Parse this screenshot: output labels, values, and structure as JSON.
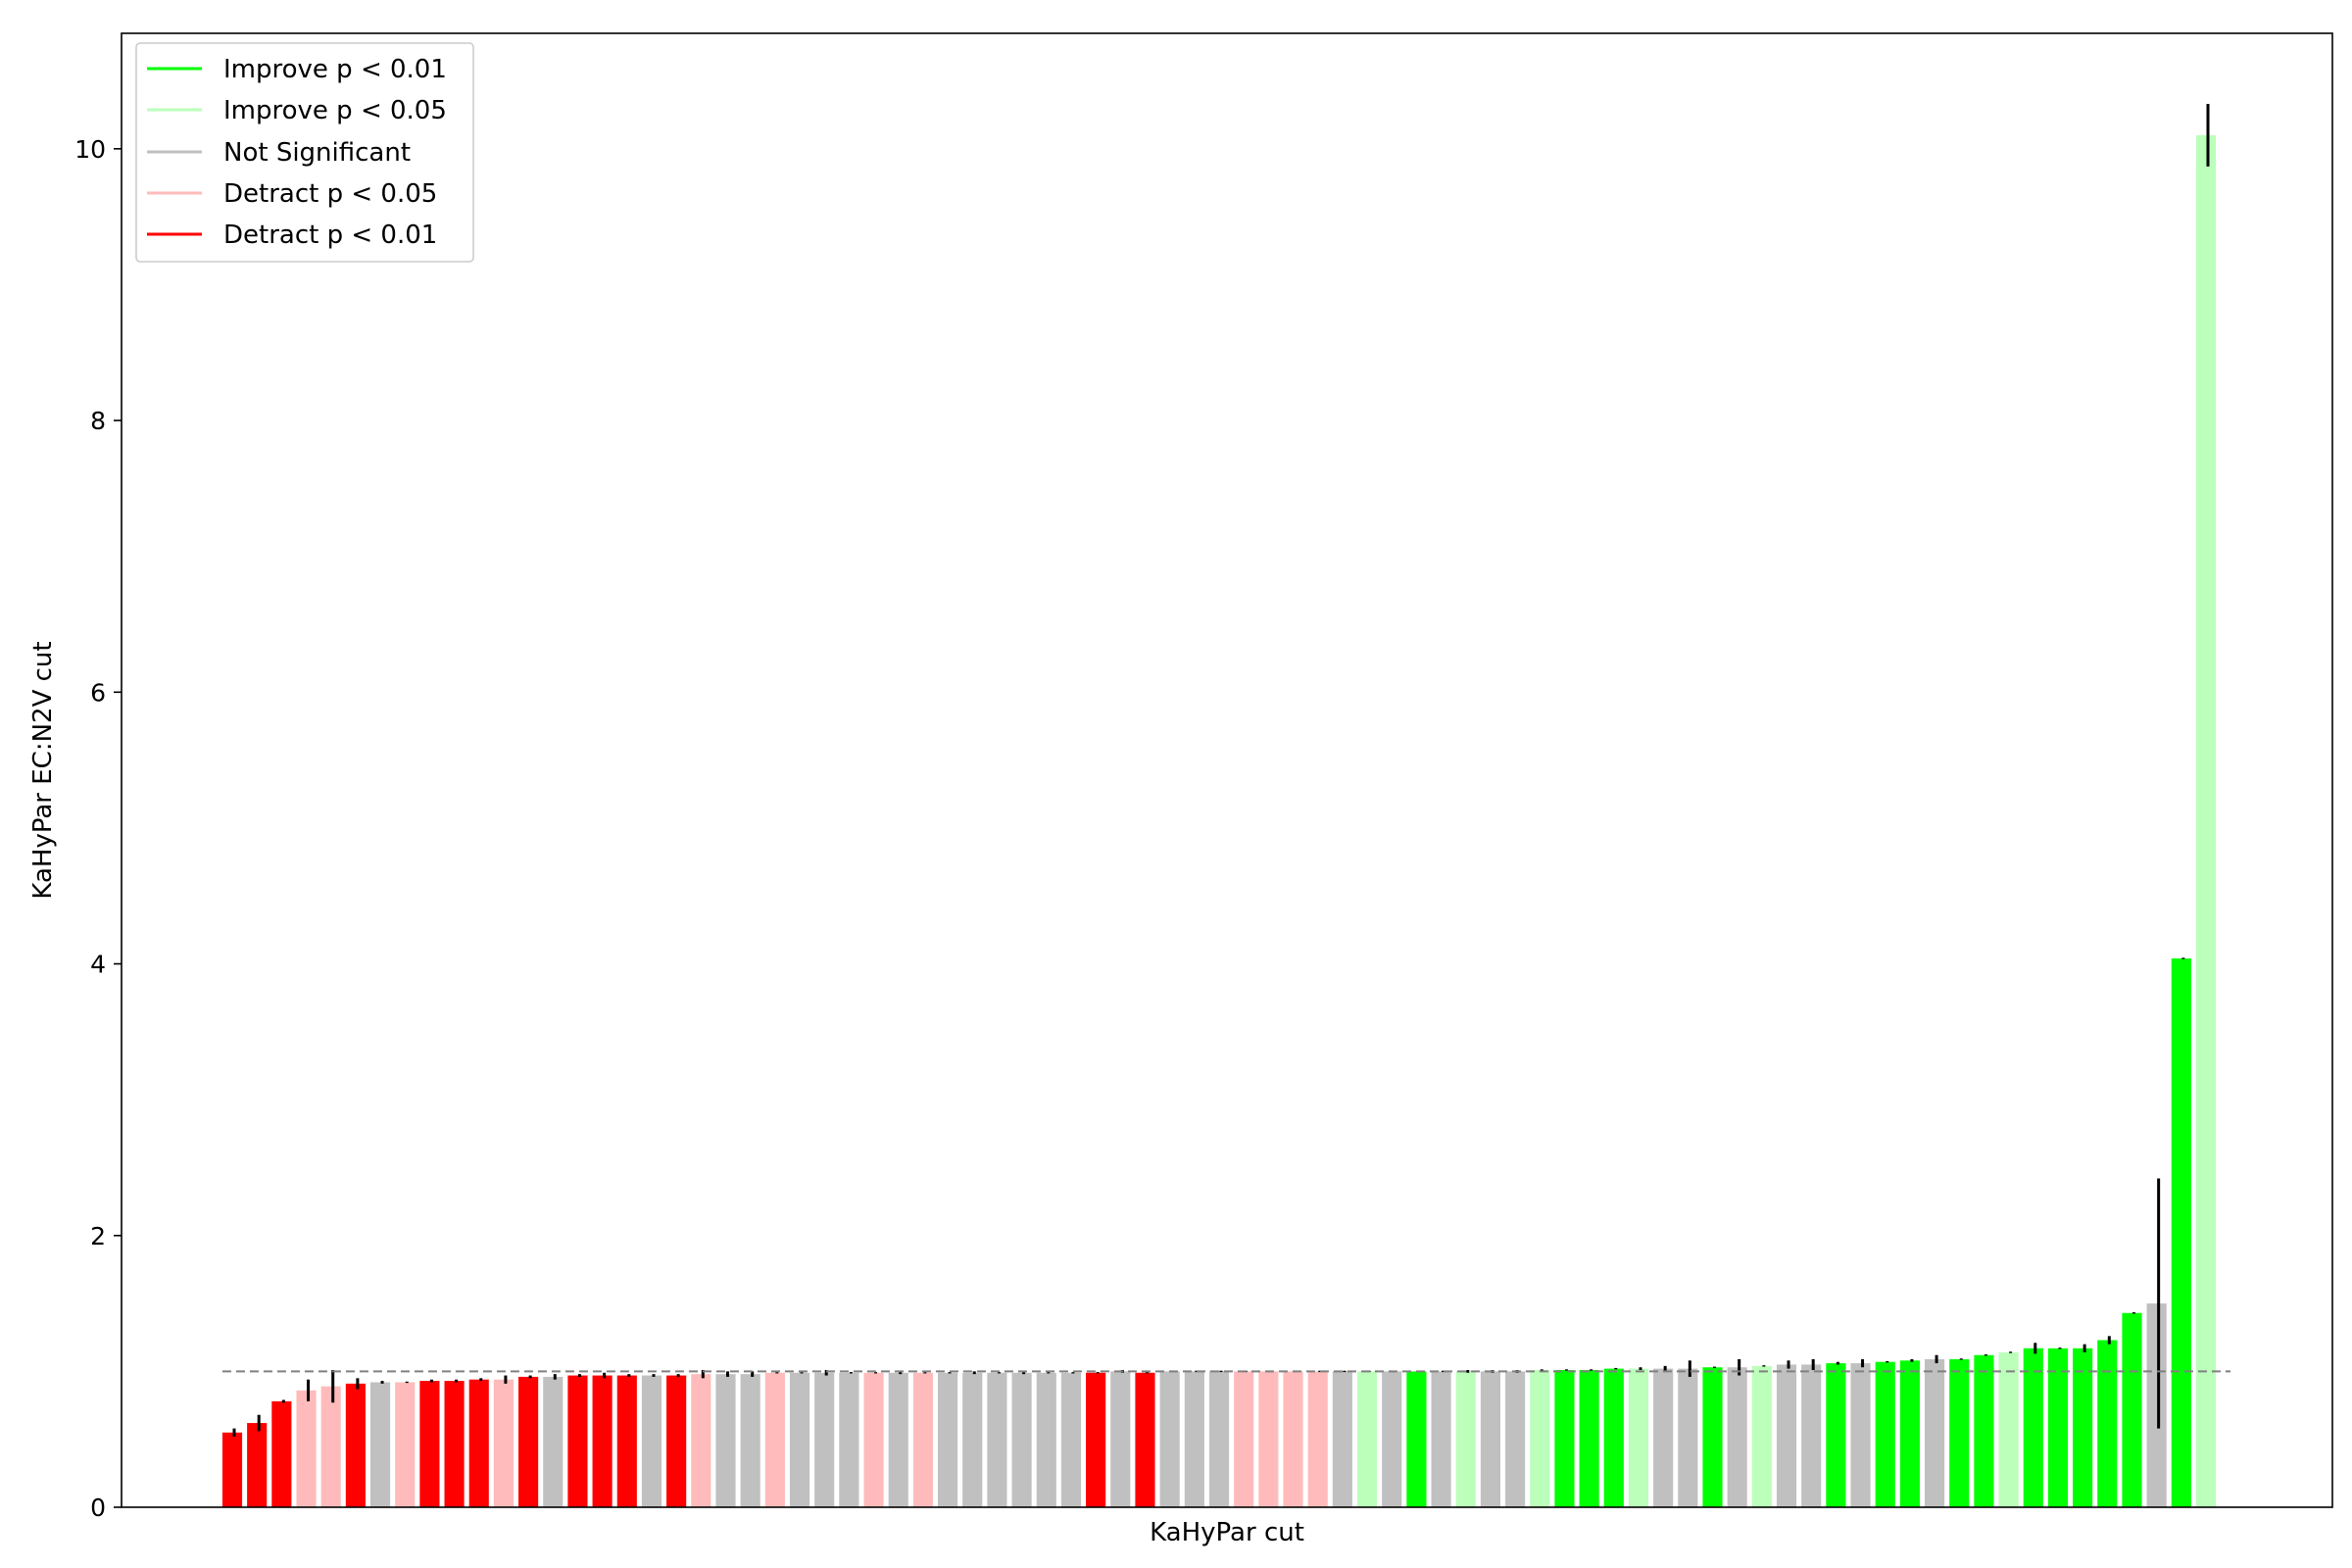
{
  "chart_data": {
    "type": "bar",
    "title": "",
    "xlabel": "KaHyPar cut",
    "ylabel": "KaHyPar EC:N2V cut",
    "ylim": [
      0,
      10.85
    ],
    "yticks": [
      0,
      2,
      4,
      6,
      8,
      10
    ],
    "ytick_labels": [
      "0",
      "2",
      "4",
      "6",
      "8",
      "10"
    ],
    "reference_line": 1.0,
    "grid": false,
    "legend_position": "top-left",
    "colors": {
      "improve_01": "#00ff00",
      "improve_05": "#bbffbb",
      "not_significant": "#c0c0c0",
      "detract_05": "#ffbbbb",
      "detract_01": "#ff0000",
      "error_bar": "#000000",
      "reference_line": "#808080"
    },
    "legend": [
      {
        "label": "Improve p < 0.01",
        "color": "#00ff00"
      },
      {
        "label": "Improve p < 0.05",
        "color": "#bbffbb"
      },
      {
        "label": "Not Significant",
        "color": "#c0c0c0"
      },
      {
        "label": "Detract p < 0.05",
        "color": "#ffbbbb"
      },
      {
        "label": "Detract p < 0.01",
        "color": "#ff0000"
      }
    ],
    "bars": [
      {
        "value": 0.55,
        "err": 0.03,
        "category": "detract_01"
      },
      {
        "value": 0.62,
        "err": 0.06,
        "category": "detract_01"
      },
      {
        "value": 0.78,
        "err": 0.01,
        "category": "detract_01"
      },
      {
        "value": 0.86,
        "err": 0.08,
        "category": "detract_05"
      },
      {
        "value": 0.89,
        "err": 0.12,
        "category": "detract_05"
      },
      {
        "value": 0.91,
        "err": 0.04,
        "category": "detract_01"
      },
      {
        "value": 0.92,
        "err": 0.01,
        "category": "not_significant"
      },
      {
        "value": 0.92,
        "err": 0.005,
        "category": "detract_05"
      },
      {
        "value": 0.93,
        "err": 0.01,
        "category": "detract_01"
      },
      {
        "value": 0.93,
        "err": 0.01,
        "category": "detract_01"
      },
      {
        "value": 0.94,
        "err": 0.01,
        "category": "detract_01"
      },
      {
        "value": 0.94,
        "err": 0.03,
        "category": "detract_05"
      },
      {
        "value": 0.96,
        "err": 0.01,
        "category": "detract_01"
      },
      {
        "value": 0.96,
        "err": 0.02,
        "category": "not_significant"
      },
      {
        "value": 0.97,
        "err": 0.01,
        "category": "detract_01"
      },
      {
        "value": 0.97,
        "err": 0.02,
        "category": "detract_01"
      },
      {
        "value": 0.97,
        "err": 0.01,
        "category": "detract_01"
      },
      {
        "value": 0.97,
        "err": 0.01,
        "category": "not_significant"
      },
      {
        "value": 0.97,
        "err": 0.01,
        "category": "detract_01"
      },
      {
        "value": 0.98,
        "err": 0.03,
        "category": "detract_05"
      },
      {
        "value": 0.98,
        "err": 0.02,
        "category": "not_significant"
      },
      {
        "value": 0.98,
        "err": 0.02,
        "category": "not_significant"
      },
      {
        "value": 0.99,
        "err": 0.005,
        "category": "detract_05"
      },
      {
        "value": 0.99,
        "err": 0.005,
        "category": "not_significant"
      },
      {
        "value": 0.99,
        "err": 0.02,
        "category": "not_significant"
      },
      {
        "value": 0.99,
        "err": 0.005,
        "category": "not_significant"
      },
      {
        "value": 0.99,
        "err": 0.005,
        "category": "detract_05"
      },
      {
        "value": 0.99,
        "err": 0.01,
        "category": "not_significant"
      },
      {
        "value": 0.99,
        "err": 0.005,
        "category": "detract_05"
      },
      {
        "value": 0.99,
        "err": 0.005,
        "category": "not_significant"
      },
      {
        "value": 0.99,
        "err": 0.01,
        "category": "not_significant"
      },
      {
        "value": 0.99,
        "err": 0.005,
        "category": "not_significant"
      },
      {
        "value": 0.99,
        "err": 0.01,
        "category": "not_significant"
      },
      {
        "value": 0.99,
        "err": 0.005,
        "category": "not_significant"
      },
      {
        "value": 0.99,
        "err": 0.005,
        "category": "not_significant"
      },
      {
        "value": 0.99,
        "err": 0.005,
        "category": "detract_01"
      },
      {
        "value": 1.0,
        "err": 0.01,
        "category": "not_significant"
      },
      {
        "value": 0.99,
        "err": 0.005,
        "category": "detract_01"
      },
      {
        "value": 1.0,
        "err": 0.005,
        "category": "not_significant"
      },
      {
        "value": 1.0,
        "err": 0.005,
        "category": "not_significant"
      },
      {
        "value": 1.0,
        "err": 0.005,
        "category": "not_significant"
      },
      {
        "value": 1.0,
        "err": 0.005,
        "category": "detract_05"
      },
      {
        "value": 1.0,
        "err": 0.005,
        "category": "detract_05"
      },
      {
        "value": 1.0,
        "err": 0.005,
        "category": "detract_05"
      },
      {
        "value": 1.0,
        "err": 0.005,
        "category": "detract_05"
      },
      {
        "value": 1.0,
        "err": 0.005,
        "category": "not_significant"
      },
      {
        "value": 1.0,
        "err": 0.005,
        "category": "improve_05"
      },
      {
        "value": 1.0,
        "err": 0.005,
        "category": "not_significant"
      },
      {
        "value": 1.0,
        "err": 0.005,
        "category": "improve_01"
      },
      {
        "value": 1.0,
        "err": 0.005,
        "category": "not_significant"
      },
      {
        "value": 1.0,
        "err": 0.01,
        "category": "improve_05"
      },
      {
        "value": 1.0,
        "err": 0.01,
        "category": "not_significant"
      },
      {
        "value": 1.0,
        "err": 0.01,
        "category": "not_significant"
      },
      {
        "value": 1.01,
        "err": 0.005,
        "category": "improve_05"
      },
      {
        "value": 1.01,
        "err": 0.005,
        "category": "improve_01"
      },
      {
        "value": 1.01,
        "err": 0.005,
        "category": "improve_01"
      },
      {
        "value": 1.02,
        "err": 0.005,
        "category": "improve_01"
      },
      {
        "value": 1.02,
        "err": 0.01,
        "category": "improve_05"
      },
      {
        "value": 1.02,
        "err": 0.02,
        "category": "not_significant"
      },
      {
        "value": 1.02,
        "err": 0.06,
        "category": "not_significant"
      },
      {
        "value": 1.03,
        "err": 0.005,
        "category": "improve_01"
      },
      {
        "value": 1.03,
        "err": 0.06,
        "category": "not_significant"
      },
      {
        "value": 1.04,
        "err": 0.005,
        "category": "improve_05"
      },
      {
        "value": 1.05,
        "err": 0.03,
        "category": "not_significant"
      },
      {
        "value": 1.05,
        "err": 0.04,
        "category": "not_significant"
      },
      {
        "value": 1.06,
        "err": 0.01,
        "category": "improve_01"
      },
      {
        "value": 1.06,
        "err": 0.03,
        "category": "not_significant"
      },
      {
        "value": 1.07,
        "err": 0.005,
        "category": "improve_01"
      },
      {
        "value": 1.08,
        "err": 0.01,
        "category": "improve_01"
      },
      {
        "value": 1.09,
        "err": 0.03,
        "category": "not_significant"
      },
      {
        "value": 1.09,
        "err": 0.005,
        "category": "improve_01"
      },
      {
        "value": 1.12,
        "err": 0.005,
        "category": "improve_01"
      },
      {
        "value": 1.14,
        "err": 0.005,
        "category": "improve_05"
      },
      {
        "value": 1.17,
        "err": 0.04,
        "category": "improve_01"
      },
      {
        "value": 1.17,
        "err": 0.005,
        "category": "improve_01"
      },
      {
        "value": 1.17,
        "err": 0.03,
        "category": "improve_01"
      },
      {
        "value": 1.23,
        "err": 0.03,
        "category": "improve_01"
      },
      {
        "value": 1.43,
        "err": 0.005,
        "category": "improve_01"
      },
      {
        "value": 1.5,
        "err": 0.92,
        "category": "not_significant"
      },
      {
        "value": 4.04,
        "err": 0.005,
        "category": "improve_01"
      },
      {
        "value": 10.1,
        "err": 0.23,
        "category": "improve_05"
      }
    ]
  }
}
